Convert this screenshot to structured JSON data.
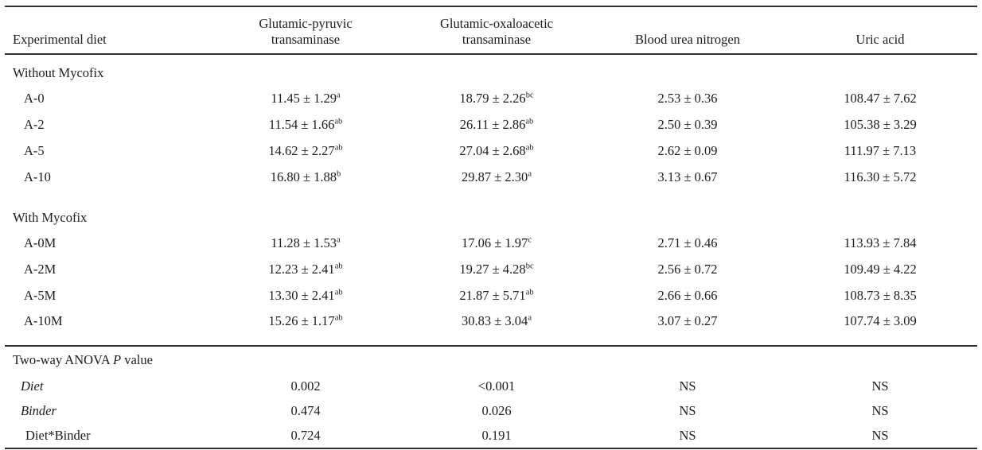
{
  "header": {
    "col1": "Experimental diet",
    "col2_line1": "Glutamic-pyruvic",
    "col2_line2": "transaminase",
    "col3_line1": "Glutamic-oxaloacetic",
    "col3_line2": "transaminase",
    "col4": "Blood urea nitrogen",
    "col5": "Uric acid"
  },
  "rows": [
    {
      "type": "section",
      "label": "Without Mycofix"
    },
    {
      "type": "data",
      "label": "A-0",
      "gpt": {
        "v": "11.45 ± 1.29",
        "sup": "a"
      },
      "got": {
        "v": "18.79 ± 2.26",
        "sup": "bc"
      },
      "bun": "2.53 ± 0.36",
      "uric": "108.47 ± 7.62"
    },
    {
      "type": "data",
      "label": "A-2",
      "gpt": {
        "v": "11.54 ± 1.66",
        "sup": "ab"
      },
      "got": {
        "v": "26.11 ± 2.86",
        "sup": "ab"
      },
      "bun": "2.50 ± 0.39",
      "uric": "105.38 ± 3.29"
    },
    {
      "type": "data",
      "label": "A-5",
      "gpt": {
        "v": "14.62 ± 2.27",
        "sup": "ab"
      },
      "got": {
        "v": "27.04 ± 2.68",
        "sup": "ab"
      },
      "bun": "2.62 ± 0.09",
      "uric": "111.97 ± 7.13"
    },
    {
      "type": "data",
      "label": "A-10",
      "gpt": {
        "v": "16.80 ± 1.88",
        "sup": "b"
      },
      "got": {
        "v": "29.87 ± 2.30",
        "sup": "a"
      },
      "bun": "3.13 ± 0.67",
      "uric": "116.30 ± 5.72"
    },
    {
      "type": "section",
      "label": "With Mycofix"
    },
    {
      "type": "data",
      "label": "A-0M",
      "gpt": {
        "v": "11.28 ± 1.53",
        "sup": "a"
      },
      "got": {
        "v": "17.06 ± 1.97",
        "sup": "c"
      },
      "bun": "2.71 ± 0.46",
      "uric": "113.93 ± 7.84"
    },
    {
      "type": "data",
      "label": "A-2M",
      "gpt": {
        "v": "12.23 ± 2.41",
        "sup": "ab"
      },
      "got": {
        "v": "19.27 ± 4.28",
        "sup": "bc"
      },
      "bun": "2.56 ± 0.72",
      "uric": "109.49 ± 4.22"
    },
    {
      "type": "data",
      "label": "A-5M",
      "gpt": {
        "v": "13.30 ± 2.41",
        "sup": "ab"
      },
      "got": {
        "v": "21.87 ± 5.71",
        "sup": "ab"
      },
      "bun": "2.66 ± 0.66",
      "uric": "108.73 ± 8.35"
    },
    {
      "type": "data",
      "label": "A-10M",
      "gpt": {
        "v": "15.26 ± 1.17",
        "sup": "ab"
      },
      "got": {
        "v": "30.83 ± 3.04",
        "sup": "a"
      },
      "bun": "3.07 ± 0.27",
      "uric": "107.74 ± 3.09"
    }
  ],
  "anova": {
    "title_pre": "Two-way ANOVA ",
    "title_italic": "P",
    "title_post": " value",
    "rows": [
      {
        "label": "Diet",
        "gpt": "0.002",
        "got": "<0.001",
        "bun": "NS",
        "uric": "NS"
      },
      {
        "label": "Binder",
        "gpt": "0.474",
        "got": "0.026",
        "bun": "NS",
        "uric": "NS"
      },
      {
        "label": "Diet*Binder",
        "gpt": "0.724",
        "got": "0.191",
        "bun": "NS",
        "uric": "NS"
      }
    ]
  },
  "colors": {
    "text": "#1c1c1c",
    "rule": "#2e2e2e",
    "background": "#ffffff"
  }
}
